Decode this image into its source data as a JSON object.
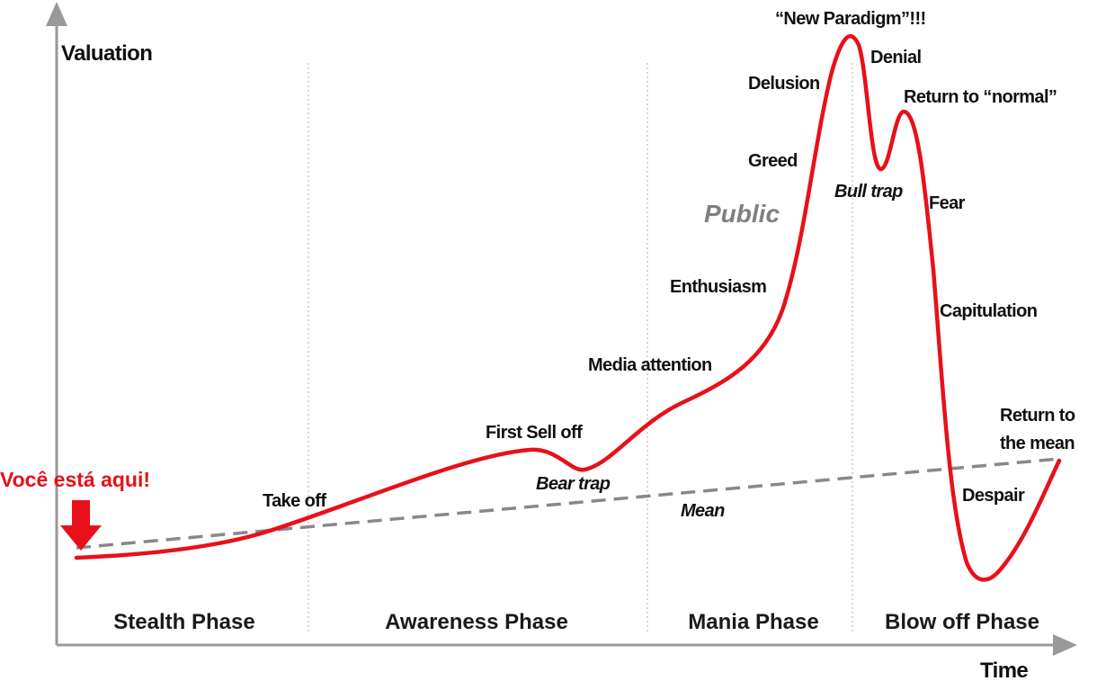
{
  "axes": {
    "y_label": "Valuation",
    "x_label": "Time"
  },
  "phases": [
    "Stealth Phase",
    "Awareness Phase",
    "Mania Phase",
    "Blow off Phase"
  ],
  "curve_labels": {
    "take_off": "Take off",
    "first_sell_off": "First Sell off",
    "bear_trap": "Bear trap",
    "media_attention": "Media attention",
    "enthusiasm": "Enthusiasm",
    "greed": "Greed",
    "delusion": "Delusion",
    "new_paradigm": "“New Paradigm”!!!",
    "denial": "Denial",
    "return_to_normal": "Return to “normal”",
    "bull_trap": "Bull trap",
    "fear": "Fear",
    "capitulation": "Capitulation",
    "despair": "Despair",
    "return_to_mean": [
      "Return to",
      "the mean"
    ]
  },
  "public_label": "Public",
  "mean_label": "Mean",
  "marker_label": "Você está aqui!"
}
